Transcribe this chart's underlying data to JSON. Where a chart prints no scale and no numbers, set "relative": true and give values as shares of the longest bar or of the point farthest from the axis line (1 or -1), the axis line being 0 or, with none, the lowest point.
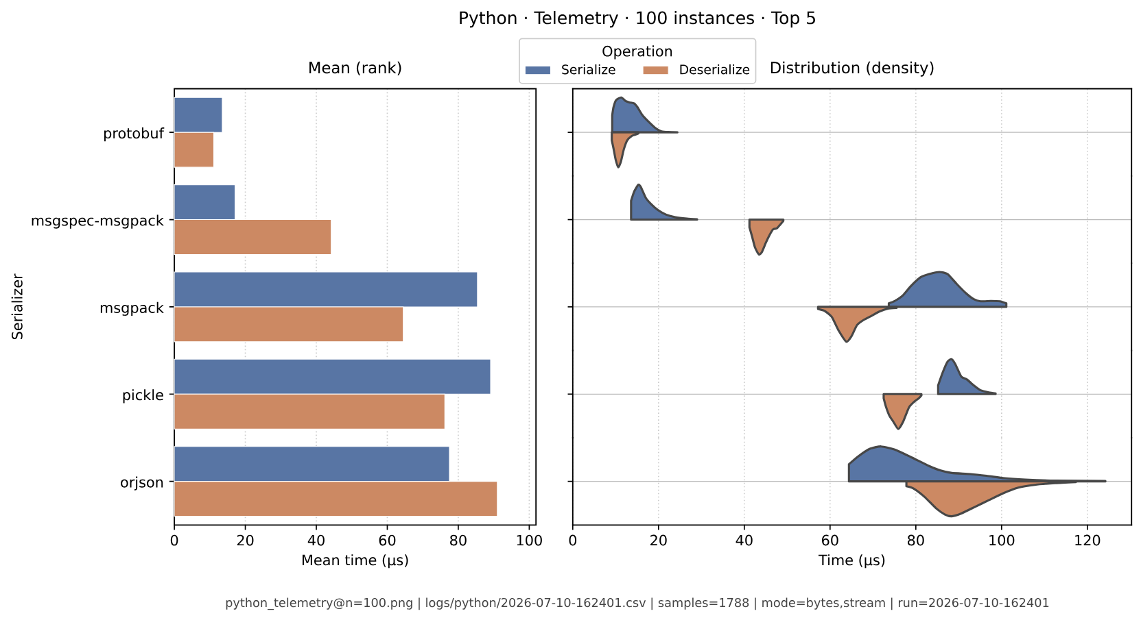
{
  "chart_data": [
    {
      "type": "bar",
      "orientation": "horizontal",
      "title": "Python · Telemetry · 100 instances · Top 5",
      "subtitle": "Mean (rank)",
      "xlabel": "Mean time (µs)",
      "ylabel": "Serializer",
      "legend_title": "Operation",
      "legend": "top",
      "grid": "x",
      "categories": [
        "protobuf",
        "msgspec-msgpack",
        "msgpack",
        "pickle",
        "orjson"
      ],
      "series": [
        {
          "name": "Serialize",
          "color": "#5875a4",
          "values": [
            13.5,
            17.1,
            85.4,
            89.1,
            77.5
          ]
        },
        {
          "name": "Deserialize",
          "color": "#cc8963",
          "values": [
            11.1,
            44.2,
            64.5,
            76.2,
            91.0
          ]
        }
      ],
      "xlim": [
        0,
        101.9
      ],
      "xticks": [
        0,
        20,
        40,
        60,
        80,
        100
      ],
      "annotations": [
        "python_telemetry@n=100.png  |  logs/python/2026-07-10-162401.csv  |  samples=1788  |  mode=bytes,stream  |  run=2026-07-10-162401"
      ]
    },
    {
      "type": "area",
      "relative": true,
      "title": "Distribution (density)",
      "grid": "x",
      "tick_labels": false,
      "xlim": [
        0,
        130.3
      ],
      "xticks": [
        0,
        20,
        40,
        60,
        80,
        100,
        120
      ],
      "series": [
        {
          "color": "#5875a4",
          "x": [
            9.2,
            9.5,
            10.1,
            11.3,
            12.3,
            13.2,
            14.3,
            15.1,
            16.2,
            17.8,
            19.4,
            20.7,
            22.3,
            24.4
          ],
          "values": [
            0.49,
            0.72,
            0.92,
            1.0,
            0.9,
            0.86,
            0.83,
            0.72,
            0.5,
            0.29,
            0.11,
            0.03,
            0.01,
            0.0
          ]
        },
        {
          "color": "#cc8963",
          "x": [
            9.1,
            9.5,
            10.0,
            10.6,
            11.2,
            11.9,
            12.7,
            13.8,
            14.7,
            15.3
          ],
          "values": [
            -0.23,
            -0.46,
            -0.78,
            -1.0,
            -0.85,
            -0.49,
            -0.23,
            -0.1,
            -0.06,
            -0.03
          ]
        }
      ]
    },
    {
      "type": "area",
      "relative": true,
      "grid": "x",
      "tick_labels": false,
      "xlim": [
        0,
        130.3
      ],
      "xticks": [
        0,
        20,
        40,
        60,
        80,
        100,
        120
      ],
      "series": [
        {
          "color": "#5875a4",
          "x": [
            13.6,
            14.3,
            15.3,
            15.9,
            17.0,
            18.3,
            19.9,
            21.8,
            23.9,
            26.6,
            29.0
          ],
          "values": [
            0.54,
            0.8,
            1.0,
            0.93,
            0.63,
            0.44,
            0.27,
            0.14,
            0.07,
            0.03,
            0.01
          ]
        },
        {
          "color": "#cc8963",
          "x": [
            41.2,
            41.8,
            42.5,
            43.4,
            44.1,
            45.0,
            45.9,
            46.7,
            47.6,
            48.4,
            49.1
          ],
          "values": [
            -0.22,
            -0.48,
            -0.8,
            -1.0,
            -0.93,
            -0.67,
            -0.44,
            -0.28,
            -0.25,
            -0.14,
            -0.04
          ]
        }
      ]
    },
    {
      "type": "area",
      "relative": true,
      "grid": "x",
      "tick_labels": false,
      "xlim": [
        0,
        130.3
      ],
      "xticks": [
        0,
        20,
        40,
        60,
        80,
        100,
        120
      ],
      "series": [
        {
          "color": "#5875a4",
          "x": [
            73.7,
            75.1,
            77.0,
            78.8,
            81.0,
            83.1,
            85.5,
            87.4,
            89.5,
            91.6,
            93.5,
            95.1,
            97.5,
            99.6,
            101.1
          ],
          "values": [
            0.1,
            0.17,
            0.33,
            0.59,
            0.84,
            0.94,
            1.0,
            0.94,
            0.66,
            0.4,
            0.22,
            0.16,
            0.17,
            0.16,
            0.1
          ]
        },
        {
          "color": "#cc8963",
          "x": [
            57.2,
            58.8,
            60.4,
            62.0,
            63.8,
            65.0,
            66.3,
            67.9,
            69.8,
            71.4,
            73.5,
            75.5
          ],
          "values": [
            -0.06,
            -0.12,
            -0.29,
            -0.68,
            -1.0,
            -0.84,
            -0.52,
            -0.37,
            -0.25,
            -0.14,
            -0.05,
            -0.03
          ]
        }
      ]
    },
    {
      "type": "area",
      "relative": true,
      "grid": "x",
      "tick_labels": false,
      "xlim": [
        0,
        130.3
      ],
      "xticks": [
        0,
        20,
        40,
        60,
        80,
        100,
        120
      ],
      "series": [
        {
          "color": "#5875a4",
          "x": [
            85.2,
            86.3,
            87.4,
            88.3,
            89.2,
            90.6,
            91.9,
            93.5,
            95.1,
            97.0,
            98.6
          ],
          "values": [
            0.25,
            0.63,
            0.93,
            1.0,
            0.86,
            0.5,
            0.42,
            0.25,
            0.11,
            0.05,
            0.02
          ]
        },
        {
          "color": "#cc8963",
          "x": [
            72.5,
            73.0,
            73.8,
            74.8,
            75.9,
            77.0,
            78.4,
            79.6,
            80.7,
            81.3
          ],
          "values": [
            -0.12,
            -0.35,
            -0.61,
            -0.8,
            -1.0,
            -0.8,
            -0.38,
            -0.22,
            -0.12,
            -0.04
          ]
        }
      ]
    },
    {
      "type": "area",
      "relative": true,
      "xlabel": "Time (µs)",
      "grid": "x",
      "tick_labels": "x",
      "xlim": [
        0,
        130.3
      ],
      "xticks": [
        0,
        20,
        40,
        60,
        80,
        100,
        120
      ],
      "series": [
        {
          "color": "#5875a4",
          "x": [
            64.4,
            66.5,
            69.2,
            71.9,
            75.1,
            78.8,
            83.1,
            85.8,
            88.4,
            92.7,
            96.5,
            100.7,
            105.5,
            112.5,
            124.2
          ],
          "values": [
            0.49,
            0.71,
            0.93,
            1.0,
            0.91,
            0.7,
            0.44,
            0.31,
            0.24,
            0.21,
            0.16,
            0.09,
            0.05,
            0.02,
            0.01
          ]
        },
        {
          "color": "#cc8963",
          "x": [
            77.8,
            79.4,
            82.0,
            84.7,
            86.8,
            88.4,
            90.6,
            93.8,
            97.0,
            100.2,
            103.9,
            107.7,
            112.5,
            117.3
          ],
          "values": [
            -0.14,
            -0.2,
            -0.44,
            -0.77,
            -0.95,
            -1.0,
            -0.92,
            -0.73,
            -0.54,
            -0.35,
            -0.18,
            -0.1,
            -0.05,
            -0.02
          ]
        }
      ]
    }
  ]
}
